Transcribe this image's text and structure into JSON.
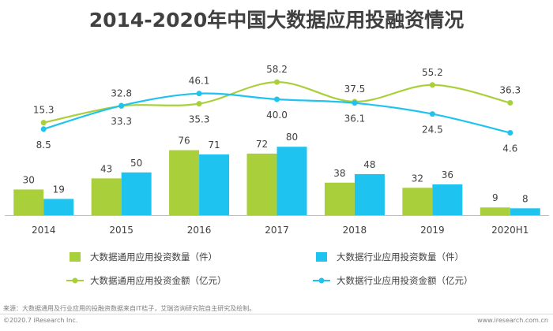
{
  "title": "2014-2020年中国大数据应用投融资情况",
  "source_note": "来源：大数据通用及行业应用的投融资数据来自IT桔子，艾瑞咨询研究院自主研究及绘制。",
  "footer": {
    "copyright": "©2020.7 iResearch Inc.",
    "website": "www.iresearch.com.cn"
  },
  "chart_data": {
    "type": "bar",
    "categories": [
      "2014",
      "2015",
      "2016",
      "2017",
      "2018",
      "2019",
      "2020H1"
    ],
    "grid": false,
    "y_axis_visible": false,
    "bar_series": [
      {
        "name": "大数据通用应用投资数量（件）",
        "color": "#a9d03b",
        "values": [
          30,
          43,
          76,
          72,
          38,
          32,
          9
        ]
      },
      {
        "name": "大数据行业应用投资数量（件）",
        "color": "#1ec4ef",
        "values": [
          19,
          50,
          71,
          80,
          48,
          36,
          8
        ]
      }
    ],
    "line_series": [
      {
        "name": "大数据通用应用投资金额（亿元）",
        "color": "#a9d03b",
        "smooth": true,
        "values": [
          15.3,
          32.8,
          35.3,
          58.2,
          37.5,
          55.2,
          36.3
        ]
      },
      {
        "name": "大数据行业应用投资金额（亿元）",
        "color": "#1ec4ef",
        "smooth": true,
        "values": [
          8.5,
          33.3,
          46.1,
          40.0,
          36.1,
          24.5,
          4.6
        ]
      }
    ],
    "line_label_text": [
      "15.3",
      "32.8",
      "35.3",
      "58.2",
      "37.5",
      "55.2",
      "36.3"
    ],
    "line_label_text_2": [
      "8.5",
      "33.3",
      "46.1",
      "40.0",
      "36.1",
      "24.5",
      "4.6"
    ],
    "legend_position": "bottom"
  }
}
